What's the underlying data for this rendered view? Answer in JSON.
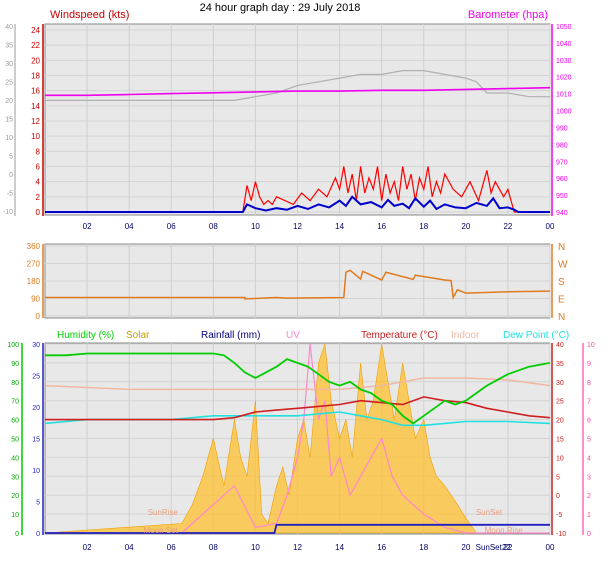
{
  "header": {
    "title": "24 hour graph day : 29 July 2018"
  },
  "colors": {
    "wind": "#ff0000",
    "gust": "#0000cc",
    "baro": "#ee00ee",
    "temp_grey": "#b0b0b0",
    "dir": "#e07b20",
    "humidity": "#00cc00",
    "solar": "#ffc030",
    "rain": "#2020c0",
    "uv": "#ff88cc",
    "temperature": "#cc2020",
    "indoor": "#f0b8a0",
    "dewpoint": "#22e0e0",
    "plot_bg": "#e8e8e8"
  },
  "x_ticks": [
    "02",
    "04",
    "06",
    "08",
    "10",
    "12",
    "14",
    "16",
    "18",
    "20",
    "22",
    "00"
  ],
  "chart_data": [
    {
      "type": "line",
      "title": "24 hour graph day : 29 July 2018",
      "left_label": "Windspeed (kts)",
      "right_label": "Barometer (hpa)",
      "left_ticks": [
        "24",
        "22",
        "20",
        "18",
        "16",
        "14",
        "12",
        "10",
        "8",
        "6",
        "4",
        "2",
        "0"
      ],
      "outer_left_ticks": [
        "40",
        "35",
        "30",
        "25",
        "20",
        "15",
        "10",
        "5",
        "0",
        "-5",
        "-10"
      ],
      "right_ticks": [
        "1050",
        "1040",
        "1030",
        "1020",
        "1010",
        "1000",
        "990",
        "980",
        "970",
        "960",
        "950",
        "940"
      ],
      "ylim_wind": [
        0,
        24
      ],
      "ylim_baro": [
        940,
        1050
      ],
      "series": [
        {
          "name": "Windspeed",
          "x": [
            0,
            9.4,
            9.6,
            9.8,
            10,
            10.2,
            10.4,
            10.6,
            10.8,
            11,
            11.4,
            11.8,
            12.2,
            12.6,
            13,
            13.4,
            13.8,
            14,
            14.2,
            14.4,
            14.6,
            14.8,
            15,
            15.2,
            15.4,
            15.6,
            15.8,
            16,
            16.2,
            16.4,
            16.6,
            16.8,
            17,
            17.2,
            17.4,
            17.6,
            17.8,
            18,
            18.2,
            18.4,
            18.6,
            18.8,
            19,
            19.4,
            19.8,
            20.2,
            20.6,
            21,
            21.2,
            21.4,
            21.6,
            21.8,
            22,
            22.3,
            22.5,
            24
          ],
          "values": [
            0,
            0,
            3.5,
            1.5,
            4,
            2,
            1,
            1.5,
            1,
            2,
            1.5,
            1,
            2.5,
            1.5,
            3,
            2,
            4.5,
            3,
            6,
            2.5,
            5,
            1.5,
            6,
            2.5,
            4.5,
            3,
            6,
            1.5,
            5,
            2.5,
            4,
            1.5,
            6,
            3,
            5,
            1.5,
            4.5,
            3,
            6,
            2,
            4,
            2.5,
            5,
            3,
            2,
            4,
            1.5,
            5.5,
            2.5,
            4,
            3,
            2,
            3,
            0,
            0,
            0
          ]
        },
        {
          "name": "Gust",
          "x": [
            0,
            9.4,
            9.6,
            10,
            10.5,
            11,
            11.5,
            12,
            12.5,
            13,
            13.5,
            14,
            14.3,
            14.6,
            15,
            15.5,
            16,
            16.3,
            16.6,
            17,
            17.3,
            17.6,
            18,
            18.3,
            18.6,
            19,
            19.5,
            20,
            20.5,
            21,
            21.3,
            21.6,
            22,
            22.3,
            22.5,
            24
          ],
          "values": [
            0,
            0,
            1,
            0.5,
            0.2,
            0.5,
            0.3,
            0.8,
            0.4,
            1,
            0.6,
            1.5,
            0.8,
            2,
            1,
            1.3,
            0.6,
            1.6,
            0.8,
            1.1,
            0.5,
            1.8,
            0.7,
            1.5,
            0.4,
            1,
            0.6,
            0.5,
            1.2,
            0.8,
            1.8,
            0.5,
            0.6,
            0.3,
            0,
            0
          ]
        },
        {
          "name": "Barometer",
          "x": [
            0,
            2,
            4,
            6,
            8,
            10,
            12,
            14,
            16,
            18,
            20,
            22,
            24
          ],
          "values": [
            1009,
            1009,
            1009.5,
            1010,
            1010.5,
            1011,
            1011.5,
            1011.5,
            1012,
            1012,
            1012.5,
            1013,
            1013.5
          ]
        },
        {
          "name": "Temperature",
          "x": [
            0,
            2,
            4,
            6,
            8,
            9,
            10,
            11,
            12,
            13,
            14,
            15,
            16,
            17,
            18,
            19,
            20,
            20.5,
            21,
            22,
            23,
            24
          ],
          "values": [
            20,
            20,
            20,
            20,
            20,
            20,
            21,
            22,
            24,
            25,
            26,
            27,
            27,
            28,
            28,
            27,
            26,
            25,
            22,
            22,
            21,
            21
          ]
        }
      ]
    },
    {
      "type": "line",
      "left_ticks": [
        "360",
        "270",
        "180",
        "90",
        "0"
      ],
      "right_ticks": [
        "N",
        "W",
        "S",
        "E",
        "N"
      ],
      "ylim": [
        0,
        360
      ],
      "series": [
        {
          "name": "Wind direction",
          "x": [
            0,
            9.5,
            9.5,
            11,
            11.5,
            14.2,
            14.3,
            14.5,
            15,
            15.1,
            16,
            16.2,
            17.5,
            17.6,
            19,
            19.3,
            19.4,
            19.6,
            20,
            22,
            24
          ],
          "values": [
            95,
            95,
            88,
            95,
            92,
            95,
            225,
            235,
            190,
            230,
            185,
            225,
            188,
            210,
            185,
            182,
            95,
            135,
            118,
            125,
            128
          ]
        }
      ]
    },
    {
      "type": "line",
      "legend": [
        "Humidity (%)",
        "Solar",
        "Rainfall (mm)",
        "UV",
        "Temperature (°C)",
        "Indoor",
        "Dew Point (°C)"
      ],
      "hum_ticks": [
        "100",
        "90",
        "80",
        "70",
        "60",
        "50",
        "40",
        "30",
        "20",
        "10",
        "0"
      ],
      "rain_ticks": [
        "30",
        "25",
        "20",
        "15",
        "10",
        "5",
        "0"
      ],
      "temp_ticks": [
        "40",
        "35",
        "30",
        "25",
        "20",
        "15",
        "10",
        "5",
        "0",
        "-5",
        "-10"
      ],
      "uv_ticks": [
        "10",
        "9",
        "8",
        "7",
        "6",
        "5",
        "4",
        "3",
        "2",
        "1",
        "0"
      ],
      "annotations": [
        "SunRise",
        "SunSet",
        "SunSet22",
        "Moon Rise",
        "Moon Set"
      ],
      "ylim_humidity": [
        0,
        100
      ],
      "ylim_temperature": [
        -10,
        40
      ],
      "ylim_rain": [
        0,
        30
      ],
      "ylim_uv": [
        0,
        10
      ],
      "series": [
        {
          "name": "Humidity",
          "x": [
            0,
            1,
            2,
            3,
            4,
            5,
            6,
            7,
            8,
            8.5,
            9,
            9.5,
            10,
            10.5,
            11,
            11.5,
            12,
            12.5,
            13,
            13.5,
            14,
            14.5,
            15,
            15.5,
            16,
            16.5,
            17,
            17.5,
            18,
            18.5,
            19,
            19.5,
            20,
            21,
            22,
            23,
            24
          ],
          "values": [
            94,
            94,
            95,
            95,
            95,
            95,
            95,
            95,
            95,
            94,
            90,
            85,
            82,
            85,
            88,
            92,
            90,
            88,
            84,
            80,
            78,
            80,
            76,
            74,
            70,
            68,
            62,
            58,
            62,
            66,
            70,
            68,
            70,
            78,
            84,
            88,
            90
          ]
        },
        {
          "name": "Temperature",
          "x": [
            0,
            2,
            4,
            6,
            8,
            9,
            10,
            11,
            12,
            13,
            14,
            15,
            16,
            17,
            18,
            19,
            20,
            21,
            22,
            23,
            24
          ],
          "values": [
            20,
            20,
            20,
            20,
            20,
            20.5,
            22,
            22.5,
            23,
            23.5,
            24,
            25,
            24.5,
            24,
            26,
            25,
            24.5,
            23,
            22,
            21,
            20.5
          ]
        },
        {
          "name": "Indoor",
          "x": [
            0,
            2,
            4,
            6,
            8,
            10,
            12,
            14,
            16,
            18,
            19,
            20,
            22,
            24
          ],
          "values": [
            29,
            28.5,
            28,
            28,
            28,
            28,
            28,
            28,
            29,
            31,
            31,
            31,
            30.5,
            29
          ]
        },
        {
          "name": "Dew Point",
          "x": [
            0,
            2,
            4,
            6,
            8,
            10,
            12,
            14,
            15,
            16,
            17,
            18,
            19,
            20,
            22,
            24
          ],
          "values": [
            19,
            20,
            20,
            20,
            21,
            21,
            21,
            22,
            21,
            20,
            18.5,
            18.5,
            19,
            19.5,
            19.5,
            19
          ]
        },
        {
          "name": "Solar",
          "x": [
            0,
            6.5,
            7,
            7.5,
            8,
            8.5,
            9,
            9.3,
            9.6,
            10,
            10.3,
            10.6,
            11,
            11.3,
            11.6,
            12,
            12.3,
            12.6,
            13,
            13.3,
            13.6,
            14,
            14.3,
            14.6,
            15,
            15.3,
            15.6,
            16,
            16.3,
            16.6,
            17,
            17.3,
            17.6,
            18,
            18.3,
            18.6,
            19,
            19.3,
            19.6,
            20,
            20.5,
            24
          ],
          "values": [
            0,
            0.5,
            1.5,
            3,
            5,
            2.5,
            6,
            4,
            3,
            7,
            1,
            0.5,
            2.5,
            3.5,
            2,
            5,
            6,
            4,
            9,
            10,
            7,
            5,
            6,
            4,
            9,
            6,
            7,
            10,
            8,
            6,
            9,
            7,
            5,
            6,
            4,
            3,
            2.5,
            2,
            1.5,
            0.8,
            0,
            0
          ]
        },
        {
          "name": "UV",
          "x": [
            0,
            6.5,
            7,
            8,
            9,
            10,
            11,
            11.5,
            12,
            12.3,
            12.6,
            12.8,
            13,
            13.3,
            13.6,
            14,
            14.5,
            15,
            15.5,
            16,
            16.5,
            17,
            17.5,
            18,
            19,
            20,
            24
          ],
          "values": [
            0,
            0,
            0.5,
            1.5,
            2.5,
            0.3,
            0.5,
            2,
            4,
            6,
            10,
            8,
            6,
            7,
            3,
            4,
            2,
            3,
            4,
            5,
            3,
            2,
            1.5,
            1,
            0.3,
            0,
            0
          ]
        },
        {
          "name": "Rainfall",
          "x": [
            0,
            10.9,
            11,
            12,
            24
          ],
          "values": [
            0,
            0,
            1.3,
            1.3,
            1.3
          ]
        }
      ]
    }
  ]
}
